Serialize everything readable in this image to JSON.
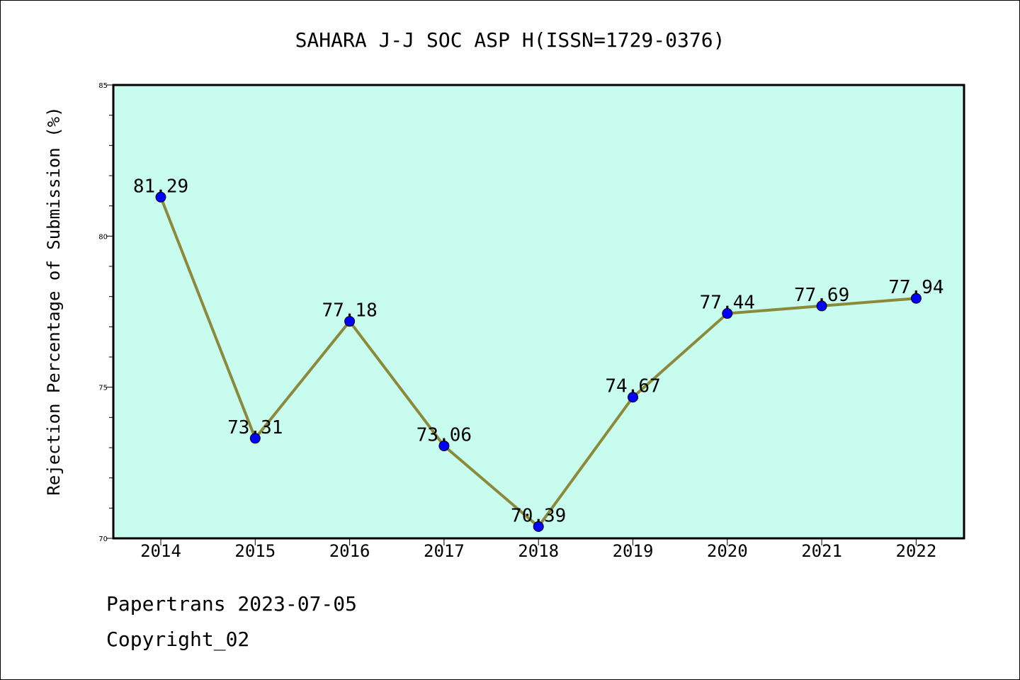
{
  "chart_data": {
    "type": "line",
    "title": "SAHARA J-J SOC ASP H(ISSN=1729-0376)",
    "xlabel": "",
    "ylabel": "Rejection Percentage of Submission (%)",
    "categories": [
      "2014",
      "2015",
      "2016",
      "2017",
      "2018",
      "2019",
      "2020",
      "2021",
      "2022"
    ],
    "series": [
      {
        "values": [
          81.29,
          73.31,
          77.18,
          73.06,
          70.39,
          74.67,
          77.44,
          77.69,
          77.94
        ],
        "labels": [
          "81.29",
          "73.31",
          "77.18",
          "73.06",
          "70.39",
          "74.67",
          "77.44",
          "77.69",
          "77.94"
        ]
      }
    ],
    "ylim": [
      70,
      85
    ],
    "yticks": [
      "70",
      "75",
      "80",
      "85"
    ],
    "grid": false,
    "colors": {
      "plot_background": "#c8fcee",
      "line": "#8b8a3a",
      "marker": "#0000ff"
    }
  },
  "footer": {
    "line1": "Papertrans 2023-07-05",
    "line2": "Copyright_02"
  }
}
